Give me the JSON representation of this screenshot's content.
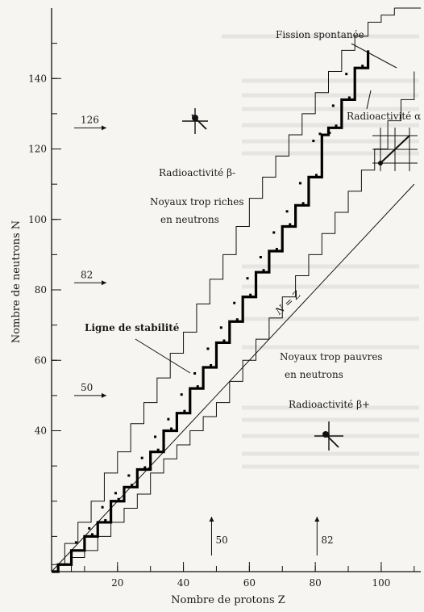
{
  "chart_data": {
    "type": "line",
    "xlabel": "Nombre de protons Z",
    "ylabel": "Nombre de neutrons N",
    "xlim": [
      0,
      112
    ],
    "ylim": [
      0,
      160
    ],
    "x_ticks": [
      20,
      40,
      60,
      80,
      100
    ],
    "y_ticks": [
      40,
      60,
      80,
      100,
      120,
      140
    ],
    "magic_numbers_N": [
      "50",
      "82",
      "126"
    ],
    "magic_numbers_Z": [
      "50",
      "82"
    ],
    "series": [
      {
        "name": "Ligne de stabilité",
        "points": [
          [
            0,
            0
          ],
          [
            2,
            2
          ],
          [
            6,
            6
          ],
          [
            10,
            10
          ],
          [
            14,
            14
          ],
          [
            18,
            20
          ],
          [
            22,
            24
          ],
          [
            26,
            29
          ],
          [
            30,
            34
          ],
          [
            34,
            40
          ],
          [
            38,
            45
          ],
          [
            42,
            52
          ],
          [
            46,
            58
          ],
          [
            50,
            65
          ],
          [
            54,
            71
          ],
          [
            58,
            78
          ],
          [
            62,
            85
          ],
          [
            66,
            91
          ],
          [
            70,
            98
          ],
          [
            74,
            104
          ],
          [
            78,
            112
          ],
          [
            82,
            124
          ],
          [
            84,
            126
          ],
          [
            88,
            134
          ],
          [
            92,
            143
          ],
          [
            96,
            148
          ]
        ]
      },
      {
        "name": "N = Z",
        "points": [
          [
            0,
            0
          ],
          [
            110,
            110
          ]
        ]
      }
    ],
    "boundaries": {
      "upper": [
        [
          0,
          2
        ],
        [
          4,
          8
        ],
        [
          8,
          14
        ],
        [
          12,
          20
        ],
        [
          16,
          28
        ],
        [
          20,
          34
        ],
        [
          24,
          42
        ],
        [
          28,
          48
        ],
        [
          32,
          55
        ],
        [
          36,
          62
        ],
        [
          40,
          68
        ],
        [
          44,
          76
        ],
        [
          48,
          83
        ],
        [
          52,
          90
        ],
        [
          56,
          98
        ],
        [
          60,
          106
        ],
        [
          64,
          112
        ],
        [
          68,
          118
        ],
        [
          72,
          124
        ],
        [
          76,
          130
        ],
        [
          80,
          136
        ],
        [
          84,
          142
        ],
        [
          88,
          148
        ],
        [
          92,
          152
        ],
        [
          96,
          156
        ],
        [
          100,
          158
        ],
        [
          104,
          160
        ]
      ],
      "lower": [
        [
          2,
          0
        ],
        [
          6,
          4
        ],
        [
          10,
          6
        ],
        [
          14,
          10
        ],
        [
          18,
          14
        ],
        [
          22,
          18
        ],
        [
          26,
          22
        ],
        [
          30,
          28
        ],
        [
          34,
          32
        ],
        [
          38,
          36
        ],
        [
          42,
          40
        ],
        [
          46,
          44
        ],
        [
          50,
          48
        ],
        [
          54,
          54
        ],
        [
          58,
          60
        ],
        [
          62,
          66
        ],
        [
          66,
          72
        ],
        [
          70,
          78
        ],
        [
          74,
          84
        ],
        [
          78,
          90
        ],
        [
          82,
          96
        ],
        [
          86,
          102
        ],
        [
          90,
          108
        ],
        [
          94,
          114
        ],
        [
          98,
          120
        ],
        [
          102,
          128
        ],
        [
          106,
          134
        ],
        [
          110,
          142
        ]
      ]
    },
    "annotations": [
      {
        "text": "Fission spontanée"
      },
      {
        "text": "Radioactivité α"
      },
      {
        "text": "Radioactivité β-"
      },
      {
        "text": "Noyaux trop riches en neutrons"
      },
      {
        "text": "Ligne de stabilité"
      },
      {
        "text": "N = Z"
      },
      {
        "text": "Noyaux trop pauvres en neutrons"
      },
      {
        "text": "Radioactivité β+"
      }
    ],
    "grid": false,
    "legend": "none"
  }
}
